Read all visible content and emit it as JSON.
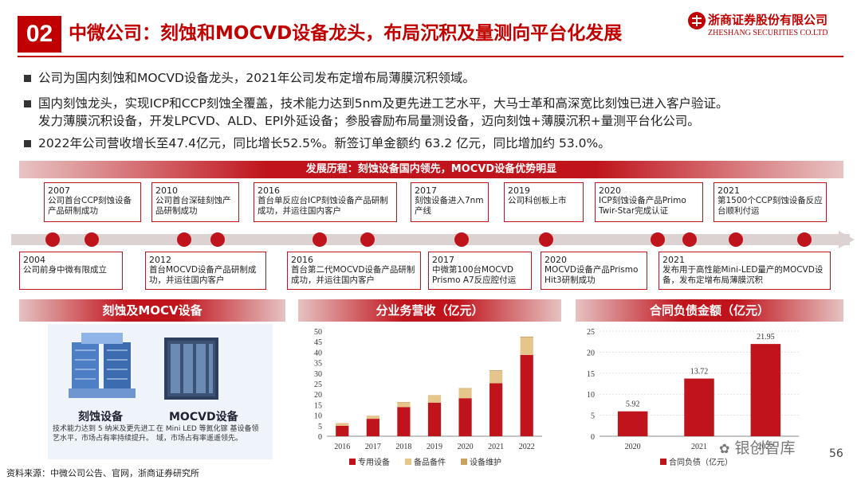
{
  "header": {
    "badge": "02",
    "title": "中微公司：刻蚀和MOCVD设备龙头，布局沉积及量测向平台化发展",
    "logo_cn": "浙商证券股份有限公司",
    "logo_en": "ZHESHANG SECURITIES CO.LTD"
  },
  "bullets": [
    "公司为国内刻蚀和MOCVD设备龙头，2021年公司发布定增布局薄膜沉积领域。",
    "国内刻蚀龙头，实现ICP和CCP刻蚀全覆盖，技术能力达到5nm及更先进工艺水平，大马士革和高深宽比刻蚀已进入客户验证。",
    "发力薄膜沉积设备，开发LPCVD、ALD、EPI外延设备；参股睿励布局量测设备，迈向刻蚀+薄膜沉积+量测平台化公司。",
    "2022年公司营收增长至47.4亿元，同比增长52.5%。新签订单金额约 63.2 亿元，同比增加约 53.0%。"
  ],
  "timeline": {
    "title": "发展历程：刻蚀设备国内领先，MOCVD设备优势明显",
    "top": [
      {
        "year": "2007",
        "text": "公司首台CCP刻蚀设备产品研制成功"
      },
      {
        "year": "2010",
        "text": "公司首台深硅刻蚀产品研制成功"
      },
      {
        "year": "2016",
        "text": "首台单反应台ICP刻蚀设备产品研制成功，并运往国内客户"
      },
      {
        "year": "2017",
        "text": "刻蚀设备进入7nm产线"
      },
      {
        "year": "2019",
        "text": "公司科创板上市"
      },
      {
        "year": "2020",
        "text": "ICP刻蚀设备产品Primo Twir-Star完成认证"
      },
      {
        "year": "2021",
        "text": "第1500个CCP刻蚀设备反应台顺利付运"
      }
    ],
    "bottom": [
      {
        "year": "2004",
        "text": "公司前身中微有限成立"
      },
      {
        "year": "2012",
        "text": "首台MOCVD设备产品研制成功，并运往国内客户"
      },
      {
        "year": "2016",
        "text": "首台第二代MOCVD设备产品研制成功，并运往国内客户"
      },
      {
        "year": "2017",
        "text": "中微第100台MOCVD Prismo A7反应腔付运"
      },
      {
        "year": "2020",
        "text": "MOCVD设备产品Prismo Hit3研制成功"
      },
      {
        "year": "2021",
        "text": "发布用于高性能Mini-LED量产的MOCVD设备，发布定增布局薄膜沉积"
      }
    ]
  },
  "products": {
    "title": "刻蚀及MOCV设备",
    "etch_name": "刻蚀设备",
    "etch_desc": "技术能力达到 5 纳米及更先进工艺水平，市场占有率持续提升。",
    "mocvd_name": "MOCVD设备",
    "mocvd_desc": "在 Mini LED 等氮化镓 基设备领域，市场占有率遥遥领先。"
  },
  "chart_data": [
    {
      "type": "bar",
      "title": "分业务营收（亿元）",
      "categories": [
        "2016",
        "2017",
        "2018",
        "2019",
        "2020",
        "2021",
        "2022"
      ],
      "series": [
        {
          "name": "专用设备",
          "color": "#c0141c",
          "values": [
            5.0,
            8.3,
            13.9,
            16.0,
            18.1,
            25.2,
            38.7
          ]
        },
        {
          "name": "备品备件",
          "color": "#e6c58a",
          "values": [
            1.0,
            1.2,
            2.2,
            3.3,
            4.5,
            5.8,
            8.3
          ]
        },
        {
          "name": "设备维护",
          "color": "#c8a060",
          "values": [
            0.2,
            0.2,
            0.2,
            0.2,
            0.3,
            0.4,
            0.4
          ]
        }
      ],
      "yticks": [
        "0",
        "5",
        "10",
        "15",
        "20",
        "25",
        "30",
        "35",
        "40",
        "45",
        "50"
      ],
      "ylim": [
        0,
        50
      ],
      "legend": "bottom"
    },
    {
      "type": "bar",
      "title": "合同负债金额（亿元）",
      "categories": [
        "2020",
        "2021",
        "2022"
      ],
      "series": [
        {
          "name": "合同负债（亿元）",
          "color": "#c0141c",
          "values": [
            5.92,
            13.72,
            21.95
          ]
        }
      ],
      "labels": [
        "5.92",
        "13.72",
        "21.95"
      ],
      "yticks": [
        "0",
        "5",
        "10",
        "15",
        "20",
        "25"
      ],
      "ylim": [
        0,
        25
      ],
      "legend": "bottom"
    }
  ],
  "footer": {
    "source": "资料来源：中微公司公告、官网，浙商证券研究所",
    "page": "56",
    "watermark": "银创智库"
  }
}
